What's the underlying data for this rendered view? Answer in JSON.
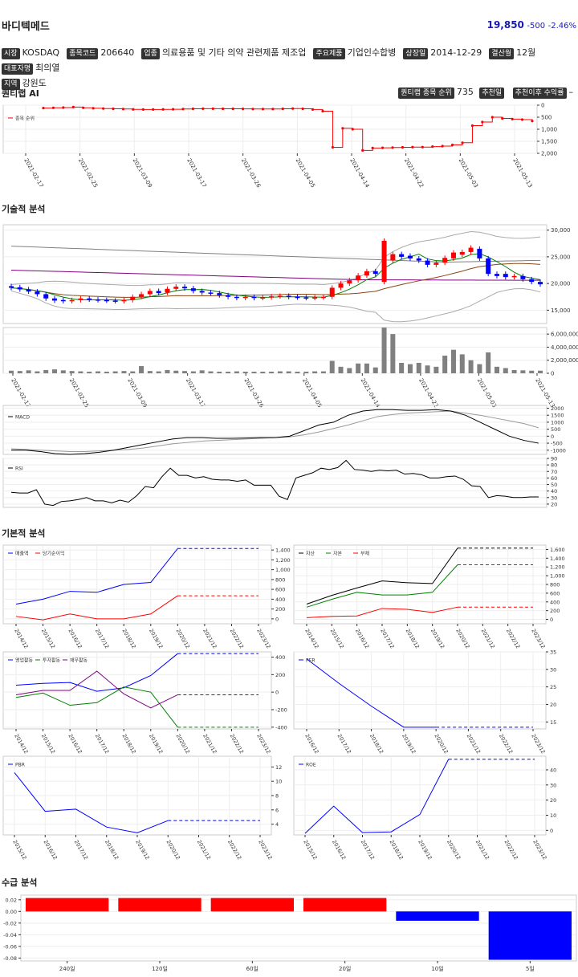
{
  "header": {
    "title": "바디텍메드",
    "price": "19,850",
    "change": "-500",
    "change_pct": "-2.46%"
  },
  "info": [
    {
      "label": "시장",
      "value": "KOSDAQ"
    },
    {
      "label": "종목코드",
      "value": "206640"
    },
    {
      "label": "업종",
      "value": "의료용품 및 기타 의약 관련제품 제조업"
    },
    {
      "label": "주요제품",
      "value": "기업인수합병"
    },
    {
      "label": "상장일",
      "value": "2014-12-29"
    },
    {
      "label": "결산월",
      "value": "12월"
    },
    {
      "label": "대표자명",
      "value": "최의열"
    },
    {
      "label": "지역",
      "value": "강원도"
    }
  ],
  "sections": {
    "quant": "퀀티랩 AI",
    "tech": "기술적 분석",
    "fund": "기본적 분석",
    "supply": "수급 분석"
  },
  "quant_tags": {
    "rank_label": "퀀티랩 종목 순위",
    "rank_value": "735",
    "prev_label": "추천일",
    "prev_value": "",
    "ret_label": "추천이후 수익률",
    "ret_value": "–"
  },
  "colors": {
    "red": "#ff0000",
    "blue": "#0000ff",
    "black": "#000000",
    "green": "#008000",
    "purple": "#800080",
    "gray": "#808080",
    "brown": "#8b4513"
  },
  "chart_data": [
    {
      "id": "rank",
      "type": "line",
      "legend": [
        "종목 순위"
      ],
      "x_ticks": [
        "2021-02-17",
        "2021-02-25",
        "2021-03-09",
        "2021-03-17",
        "2021-03-26",
        "2021-04-05",
        "2021-04-14",
        "2021-04-22",
        "2021-05-03",
        "2021-05-13"
      ],
      "y_ticks": [
        "0",
        "500",
        "1,000",
        "1,500",
        "2,000"
      ],
      "ylim": [
        0,
        2000
      ],
      "y_inverted": true,
      "values": [
        120,
        110,
        100,
        80,
        110,
        130,
        140,
        150,
        160,
        175,
        180,
        180,
        175,
        170,
        160,
        150,
        145,
        145,
        150,
        150,
        155,
        160,
        160,
        160,
        150,
        140,
        150,
        180,
        250,
        1750,
        960,
        1000,
        1880,
        1780,
        1770,
        1760,
        1750,
        1740,
        1740,
        1720,
        1700,
        1650,
        1560,
        850,
        700,
        500,
        550,
        580,
        600,
        660
      ]
    },
    {
      "id": "price",
      "type": "candlestick",
      "y_ticks": [
        "15,000",
        "20,000",
        "25,000",
        "30,000"
      ],
      "ylim": [
        12500,
        31000
      ],
      "candles": [
        [
          19500,
          19200
        ],
        [
          19300,
          18900
        ],
        [
          18900,
          18500
        ],
        [
          18500,
          18000
        ],
        [
          18000,
          17200
        ],
        [
          17200,
          16800
        ],
        [
          16900,
          16700
        ],
        [
          16700,
          16900
        ],
        [
          16900,
          17200
        ],
        [
          17200,
          17000
        ],
        [
          17000,
          16900
        ],
        [
          16900,
          16800
        ],
        [
          16800,
          16700
        ],
        [
          16700,
          16900
        ],
        [
          16900,
          17500
        ],
        [
          17500,
          18000
        ],
        [
          18000,
          18600
        ],
        [
          18600,
          18200
        ],
        [
          18300,
          19000
        ],
        [
          19000,
          19400
        ],
        [
          19400,
          19100
        ],
        [
          19100,
          18600
        ],
        [
          18600,
          18300
        ],
        [
          18300,
          18200
        ],
        [
          18200,
          17800
        ],
        [
          17800,
          17500
        ],
        [
          17500,
          17300
        ],
        [
          17300,
          17500
        ],
        [
          17500,
          17300
        ],
        [
          17300,
          17400
        ],
        [
          17400,
          17600
        ],
        [
          17600,
          17700
        ],
        [
          17700,
          17500
        ],
        [
          17500,
          17400
        ],
        [
          17400,
          17300
        ],
        [
          17300,
          17400
        ],
        [
          17400,
          17500
        ],
        [
          17500,
          19200
        ],
        [
          19200,
          20000
        ],
        [
          20000,
          20600
        ],
        [
          20600,
          21500
        ],
        [
          21500,
          22300
        ],
        [
          22300,
          21800
        ],
        [
          20300,
          28000
        ],
        [
          24300,
          25500
        ],
        [
          25500,
          25000
        ],
        [
          25200,
          24700
        ],
        [
          24700,
          24300
        ],
        [
          24300,
          23500
        ],
        [
          23500,
          23900
        ],
        [
          23900,
          24800
        ],
        [
          24700,
          25800
        ],
        [
          25400,
          25900
        ],
        [
          25900,
          26700
        ],
        [
          26500,
          24700
        ],
        [
          24700,
          21800
        ],
        [
          21800,
          21400
        ],
        [
          21800,
          21200
        ],
        [
          21200,
          21400
        ],
        [
          21400,
          20800
        ],
        [
          20800,
          20300
        ],
        [
          20300,
          19850
        ]
      ],
      "ma": {
        "short": "green",
        "mid": "brown",
        "long": "purple",
        "longest": "gray"
      }
    },
    {
      "id": "volume",
      "type": "bar",
      "y_ticks": [
        "0",
        "2,000,000",
        "4,000,000",
        "6,000,000"
      ],
      "ylim": [
        0,
        7000000
      ],
      "x_ticks": [
        "2021-02-17",
        "2021-02-25",
        "2021-03-09",
        "2021-03-17",
        "2021-03-26",
        "2021-04-05",
        "2021-04-14",
        "2021-04-22",
        "2021-05-03",
        "2021-05-13"
      ],
      "values": [
        400000,
        350000,
        450000,
        300000,
        500000,
        600000,
        450000,
        350000,
        300000,
        250000,
        300000,
        250000,
        300000,
        350000,
        300000,
        1100000,
        350000,
        300000,
        500000,
        400000,
        350000,
        300000,
        450000,
        300000,
        250000,
        250000,
        300000,
        250000,
        250000,
        250000,
        250000,
        300000,
        300000,
        250000,
        250000,
        300000,
        300000,
        1900000,
        1000000,
        800000,
        1500000,
        1500000,
        900000,
        7000000,
        6000000,
        1600000,
        1400000,
        1600000,
        1200000,
        1000000,
        2700000,
        3600000,
        2900000,
        2000000,
        1400000,
        3200000,
        1000000,
        800000,
        500000,
        450000,
        400000,
        400000
      ]
    },
    {
      "id": "macd",
      "type": "line",
      "legend": [
        "MACD"
      ],
      "y_ticks": [
        "-1000",
        "-500",
        "0",
        "500",
        "1000",
        "1500",
        "2000"
      ],
      "ylim": [
        -1300,
        2200
      ],
      "series": [
        {
          "name": "MACD",
          "values": [
            -1000,
            -1000,
            -1100,
            -1250,
            -1300,
            -1250,
            -1150,
            -1000,
            -800,
            -600,
            -400,
            -200,
            -100,
            -100,
            -150,
            -150,
            -130,
            -100,
            -100,
            0,
            400,
            800,
            1000,
            1500,
            1800,
            1900,
            1900,
            1850,
            1850,
            1900,
            1800,
            1500,
            1000,
            500,
            0,
            -300,
            -500
          ]
        },
        {
          "name": "signal",
          "values": [
            -900,
            -950,
            -1000,
            -1050,
            -1100,
            -1100,
            -1050,
            -1000,
            -950,
            -850,
            -700,
            -550,
            -450,
            -350,
            -300,
            -250,
            -200,
            -150,
            -100,
            -50,
            100,
            300,
            550,
            800,
            1100,
            1400,
            1550,
            1650,
            1700,
            1750,
            1800,
            1650,
            1500,
            1300,
            1100,
            900,
            600
          ]
        }
      ]
    },
    {
      "id": "rsi",
      "type": "line",
      "legend": [
        "RSI"
      ],
      "y_ticks": [
        "20",
        "30",
        "40",
        "50",
        "60",
        "70",
        "80",
        "90"
      ],
      "ylim": [
        15,
        90
      ],
      "values": [
        38,
        37,
        37,
        42,
        20,
        18,
        24,
        25,
        27,
        30,
        25,
        25,
        22,
        26,
        23,
        33,
        47,
        45,
        62,
        75,
        64,
        64,
        60,
        62,
        58,
        57,
        57,
        55,
        57,
        49,
        49,
        49,
        32,
        27,
        60,
        64,
        68,
        75,
        73,
        76,
        87,
        73,
        72,
        70,
        72,
        71,
        72,
        66,
        67,
        65,
        60,
        60,
        62,
        63,
        58,
        48,
        47,
        30,
        33,
        32,
        30,
        30,
        31,
        31
      ]
    },
    {
      "id": "sales",
      "type": "line",
      "legend": [
        "매출액",
        "당기순이익"
      ],
      "x_ticks": [
        "2014/12",
        "2015/12",
        "2016/12",
        "2017/12",
        "2018/12",
        "2019/12",
        "2020/12",
        "2021/12",
        "2022/12",
        "2023/12"
      ],
      "y_ticks": [
        "0",
        "200",
        "400",
        "600",
        "800",
        "1,000",
        "1,200",
        "1,400"
      ],
      "ylim": [
        -100,
        1500
      ],
      "series": [
        {
          "name": "매출액",
          "values": [
            300,
            400,
            560,
            540,
            700,
            740,
            1430,
            1430,
            1430,
            1430
          ]
        },
        {
          "name": "당기순이익",
          "values": [
            50,
            -20,
            100,
            0,
            0,
            100,
            470,
            470,
            470,
            470
          ]
        }
      ]
    },
    {
      "id": "balance",
      "type": "line",
      "legend": [
        "자산",
        "자본",
        "부채"
      ],
      "x_ticks": [
        "2014/12",
        "2015/12",
        "2016/12",
        "2017/12",
        "2018/12",
        "2019/12",
        "2020/12",
        "2021/12",
        "2022/12",
        "2023/12"
      ],
      "y_ticks": [
        "0",
        "200",
        "400",
        "600",
        "800",
        "1,000",
        "1,200",
        "1,400",
        "1,600"
      ],
      "ylim": [
        -100,
        1700
      ],
      "series": [
        {
          "name": "자산",
          "values": [
            350,
            550,
            720,
            880,
            840,
            820,
            1630,
            1630,
            1630,
            1630
          ]
        },
        {
          "name": "자본",
          "values": [
            280,
            460,
            620,
            560,
            560,
            620,
            1250,
            1250,
            1250,
            1250
          ]
        },
        {
          "name": "부채",
          "values": [
            40,
            70,
            80,
            250,
            230,
            160,
            280,
            280,
            280,
            280
          ]
        }
      ]
    },
    {
      "id": "cashflow",
      "type": "line",
      "legend": [
        "영업활동",
        "투자활동",
        "재무활동"
      ],
      "x_ticks": [
        "2014/12",
        "2015/12",
        "2016/12",
        "2017/12",
        "2018/12",
        "2019/12",
        "2020/12",
        "2021/12",
        "2022/12",
        "2023/12"
      ],
      "y_ticks": [
        "-400",
        "-200",
        "0",
        "200",
        "400"
      ],
      "ylim": [
        -420,
        460
      ],
      "series": [
        {
          "name": "영업활동",
          "values": [
            80,
            100,
            110,
            10,
            50,
            190,
            440,
            440,
            440,
            440
          ]
        },
        {
          "name": "투자활동",
          "values": [
            -60,
            -10,
            -150,
            -120,
            60,
            0,
            -400,
            -400,
            -400,
            -400
          ]
        },
        {
          "name": "재무활동",
          "values": [
            -30,
            20,
            20,
            240,
            -20,
            -180,
            -30,
            -30,
            -30,
            -30
          ]
        }
      ]
    },
    {
      "id": "per",
      "type": "line",
      "legend": [
        "PER"
      ],
      "x_ticks": [
        "2016/12",
        "2017/12",
        "2018/12",
        "2019/12",
        "2020/12",
        "2021/12",
        "2022/12",
        "2023/12"
      ],
      "y_ticks": [
        "15",
        "20",
        "25",
        "30",
        "35"
      ],
      "ylim": [
        13,
        35
      ],
      "values": [
        33,
        26,
        19.5,
        13.5,
        13.5,
        13.5,
        13.5,
        13.5
      ]
    },
    {
      "id": "pbr",
      "type": "line",
      "legend": [
        "PBR"
      ],
      "x_ticks": [
        "2015/12",
        "2016/12",
        "2017/12",
        "2018/12",
        "2019/12",
        "2020/12",
        "2021/12",
        "2022/12",
        "2023/12"
      ],
      "y_ticks": [
        "4",
        "6",
        "8",
        "10",
        "12"
      ],
      "ylim": [
        2.5,
        13.5
      ],
      "values": [
        11.2,
        5.8,
        6.1,
        3.6,
        2.8,
        4.5,
        4.5,
        4.5,
        4.5
      ]
    },
    {
      "id": "roe",
      "type": "line",
      "legend": [
        "ROE"
      ],
      "x_ticks": [
        "2015/12",
        "2016/12",
        "2017/12",
        "2018/12",
        "2019/12",
        "2020/12",
        "2021/12",
        "2022/12",
        "2023/12"
      ],
      "y_ticks": [
        "0",
        "10",
        "20",
        "30",
        "40"
      ],
      "ylim": [
        -3,
        49
      ],
      "values": [
        -2,
        16,
        -1.5,
        -1,
        10.5,
        47,
        47,
        47,
        47
      ]
    },
    {
      "id": "supply",
      "type": "bar",
      "categories": [
        "240일",
        "120일",
        "60일",
        "20일",
        "10일",
        "5일"
      ],
      "y_ticks": [
        "0.02",
        "0.00",
        "-0.02",
        "-0.04",
        "-0.06",
        "-0.08"
      ],
      "ylim": [
        -0.085,
        0.028
      ],
      "values": [
        0.023,
        0.023,
        0.023,
        0.023,
        -0.016,
        -0.083
      ]
    }
  ]
}
